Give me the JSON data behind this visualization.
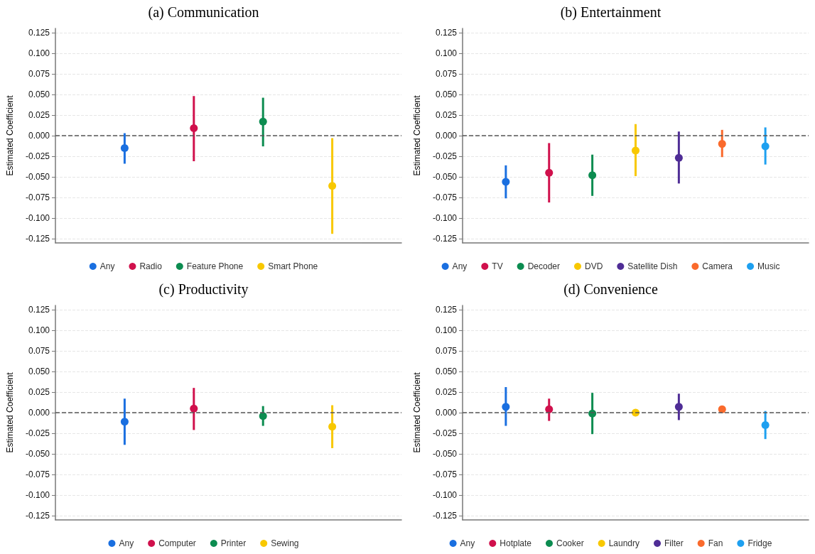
{
  "chart_data": [
    {
      "type": "scatter",
      "title": "(a) Communication",
      "ylabel": "Estimated Coefficient",
      "categories": [
        null,
        null,
        null,
        null
      ],
      "ylim": [
        -0.13,
        0.13
      ],
      "yticks": [
        {
          "value": -0.125,
          "label": "-0.125"
        },
        {
          "value": -0.1,
          "label": "-0.100"
        },
        {
          "value": -0.075,
          "label": "-0.075"
        },
        {
          "value": -0.05,
          "label": "-0.050"
        },
        {
          "value": -0.025,
          "label": "-0.025"
        },
        {
          "value": 0,
          "label": "0.000"
        },
        {
          "value": 0.025,
          "label": "0.025"
        },
        {
          "value": 0.05,
          "label": "0.050"
        },
        {
          "value": 0.075,
          "label": "0.075"
        },
        {
          "value": 0.1,
          "label": "0.100"
        },
        {
          "value": 0.125,
          "label": "0.125"
        }
      ],
      "grid": "y",
      "legend": "bottom",
      "marker": "circle",
      "tick_labels": "y",
      "ref_lines": [
        {
          "axis": "y",
          "value": 0,
          "color": "#555555",
          "line_style": "dashed"
        }
      ],
      "series": [
        {
          "name": "Any",
          "color": "#1a6fe0",
          "values": [
            -0.015,
            null,
            null,
            null
          ],
          "errors": [
            [
              -0.034,
              0.003
            ],
            null,
            null,
            null
          ]
        },
        {
          "name": "Radio",
          "color": "#d0104c",
          "values": [
            null,
            0.009,
            null,
            null
          ],
          "errors": [
            null,
            [
              -0.031,
              0.048
            ],
            null,
            null
          ]
        },
        {
          "name": "Feature Phone",
          "color": "#0c8c50",
          "values": [
            null,
            null,
            0.017,
            null
          ],
          "errors": [
            null,
            null,
            [
              -0.013,
              0.046
            ],
            null
          ]
        },
        {
          "name": "Smart Phone",
          "color": "#f8c800",
          "values": [
            null,
            null,
            null,
            -0.061
          ],
          "errors": [
            null,
            null,
            null,
            [
              -0.119,
              -0.003
            ]
          ]
        }
      ]
    },
    {
      "type": "scatter",
      "title": "(b) Entertainment",
      "ylabel": "Estimated Coefficient",
      "categories": [
        null,
        null,
        null,
        null,
        null,
        null,
        null
      ],
      "ylim": [
        -0.13,
        0.13
      ],
      "yticks": [
        {
          "value": -0.125,
          "label": "-0.125"
        },
        {
          "value": -0.1,
          "label": "-0.100"
        },
        {
          "value": -0.075,
          "label": "-0.075"
        },
        {
          "value": -0.05,
          "label": "-0.050"
        },
        {
          "value": -0.025,
          "label": "-0.025"
        },
        {
          "value": 0,
          "label": "0.000"
        },
        {
          "value": 0.025,
          "label": "0.025"
        },
        {
          "value": 0.05,
          "label": "0.050"
        },
        {
          "value": 0.075,
          "label": "0.075"
        },
        {
          "value": 0.1,
          "label": "0.100"
        },
        {
          "value": 0.125,
          "label": "0.125"
        }
      ],
      "grid": "y",
      "legend": "bottom",
      "marker": "circle",
      "tick_labels": "y",
      "ref_lines": [
        {
          "axis": "y",
          "value": 0,
          "color": "#555555",
          "line_style": "dashed"
        }
      ],
      "series": [
        {
          "name": "Any",
          "color": "#1a6fe0",
          "values": [
            -0.056,
            null,
            null,
            null,
            null,
            null,
            null
          ],
          "errors": [
            [
              -0.076,
              -0.036
            ],
            null,
            null,
            null,
            null,
            null,
            null
          ]
        },
        {
          "name": "TV",
          "color": "#d0104c",
          "values": [
            null,
            -0.045,
            null,
            null,
            null,
            null,
            null
          ],
          "errors": [
            null,
            [
              -0.081,
              -0.009
            ],
            null,
            null,
            null,
            null,
            null
          ]
        },
        {
          "name": "Decoder",
          "color": "#0c8c50",
          "values": [
            null,
            null,
            -0.048,
            null,
            null,
            null,
            null
          ],
          "errors": [
            null,
            null,
            [
              -0.073,
              -0.023
            ],
            null,
            null,
            null,
            null
          ]
        },
        {
          "name": "DVD",
          "color": "#f8c800",
          "values": [
            null,
            null,
            null,
            -0.018,
            null,
            null,
            null
          ],
          "errors": [
            null,
            null,
            null,
            [
              -0.049,
              0.014
            ],
            null,
            null,
            null
          ]
        },
        {
          "name": "Satellite Dish",
          "color": "#4f2d96",
          "values": [
            null,
            null,
            null,
            null,
            -0.027,
            null,
            null
          ],
          "errors": [
            null,
            null,
            null,
            null,
            [
              -0.058,
              0.005
            ],
            null,
            null
          ]
        },
        {
          "name": "Camera",
          "color": "#fa6a2c",
          "values": [
            null,
            null,
            null,
            null,
            null,
            -0.01,
            null
          ],
          "errors": [
            null,
            null,
            null,
            null,
            null,
            [
              -0.026,
              0.007
            ],
            null
          ]
        },
        {
          "name": "Music",
          "color": "#1ea0f0",
          "values": [
            null,
            null,
            null,
            null,
            null,
            null,
            -0.013
          ],
          "errors": [
            null,
            null,
            null,
            null,
            null,
            null,
            [
              -0.035,
              0.01
            ]
          ]
        }
      ]
    },
    {
      "type": "scatter",
      "title": "(c) Productivity",
      "ylabel": "Estimated Coefficient",
      "categories": [
        null,
        null,
        null,
        null
      ],
      "ylim": [
        -0.13,
        0.13
      ],
      "yticks": [
        {
          "value": -0.125,
          "label": "-0.125"
        },
        {
          "value": -0.1,
          "label": "-0.100"
        },
        {
          "value": -0.075,
          "label": "-0.075"
        },
        {
          "value": -0.05,
          "label": "-0.050"
        },
        {
          "value": -0.025,
          "label": "-0.025"
        },
        {
          "value": 0,
          "label": "0.000"
        },
        {
          "value": 0.025,
          "label": "0.025"
        },
        {
          "value": 0.05,
          "label": "0.050"
        },
        {
          "value": 0.075,
          "label": "0.075"
        },
        {
          "value": 0.1,
          "label": "0.100"
        },
        {
          "value": 0.125,
          "label": "0.125"
        }
      ],
      "grid": "y",
      "legend": "bottom",
      "marker": "circle",
      "tick_labels": "y",
      "ref_lines": [
        {
          "axis": "y",
          "value": 0,
          "color": "#555555",
          "line_style": "dashed"
        }
      ],
      "series": [
        {
          "name": "Any",
          "color": "#1a6fe0",
          "values": [
            -0.011,
            null,
            null,
            null
          ],
          "errors": [
            [
              -0.039,
              0.017
            ],
            null,
            null,
            null
          ]
        },
        {
          "name": "Computer",
          "color": "#d0104c",
          "values": [
            null,
            0.005,
            null,
            null
          ],
          "errors": [
            null,
            [
              -0.021,
              0.03
            ],
            null,
            null
          ]
        },
        {
          "name": "Printer",
          "color": "#0c8c50",
          "values": [
            null,
            null,
            -0.004,
            null
          ],
          "errors": [
            null,
            null,
            [
              -0.016,
              0.008
            ],
            null
          ]
        },
        {
          "name": "Sewing",
          "color": "#f8c800",
          "values": [
            null,
            null,
            null,
            -0.017
          ],
          "errors": [
            null,
            null,
            null,
            [
              -0.043,
              0.009
            ]
          ]
        }
      ]
    },
    {
      "type": "scatter",
      "title": "(d) Convenience",
      "ylabel": "Estimated Coefficient",
      "categories": [
        null,
        null,
        null,
        null,
        null,
        null,
        null
      ],
      "ylim": [
        -0.13,
        0.13
      ],
      "yticks": [
        {
          "value": -0.125,
          "label": "-0.125"
        },
        {
          "value": -0.1,
          "label": "-0.100"
        },
        {
          "value": -0.075,
          "label": "-0.075"
        },
        {
          "value": -0.05,
          "label": "-0.050"
        },
        {
          "value": -0.025,
          "label": "-0.025"
        },
        {
          "value": 0,
          "label": "0.000"
        },
        {
          "value": 0.025,
          "label": "0.025"
        },
        {
          "value": 0.05,
          "label": "0.050"
        },
        {
          "value": 0.075,
          "label": "0.075"
        },
        {
          "value": 0.1,
          "label": "0.100"
        },
        {
          "value": 0.125,
          "label": "0.125"
        }
      ],
      "grid": "y",
      "legend": "bottom",
      "marker": "circle",
      "tick_labels": "y",
      "ref_lines": [
        {
          "axis": "y",
          "value": 0,
          "color": "#555555",
          "line_style": "dashed"
        }
      ],
      "series": [
        {
          "name": "Any",
          "color": "#1a6fe0",
          "values": [
            0.007,
            null,
            null,
            null,
            null,
            null,
            null
          ],
          "errors": [
            [
              -0.016,
              0.031
            ],
            null,
            null,
            null,
            null,
            null,
            null
          ]
        },
        {
          "name": "Hotplate",
          "color": "#d0104c",
          "values": [
            null,
            0.004,
            null,
            null,
            null,
            null,
            null
          ],
          "errors": [
            null,
            [
              -0.01,
              0.017
            ],
            null,
            null,
            null,
            null,
            null
          ]
        },
        {
          "name": "Cooker",
          "color": "#0c8c50",
          "values": [
            null,
            null,
            -0.001,
            null,
            null,
            null,
            null
          ],
          "errors": [
            null,
            null,
            [
              -0.026,
              0.024
            ],
            null,
            null,
            null,
            null
          ]
        },
        {
          "name": "Laundry",
          "color": "#f8c800",
          "values": [
            null,
            null,
            null,
            0.0,
            null,
            null,
            null
          ],
          "errors": [
            null,
            null,
            null,
            null,
            null,
            null,
            null
          ]
        },
        {
          "name": "Filter",
          "color": "#4f2d96",
          "values": [
            null,
            null,
            null,
            null,
            0.007,
            null,
            null
          ],
          "errors": [
            null,
            null,
            null,
            null,
            [
              -0.009,
              0.023
            ],
            null,
            null
          ]
        },
        {
          "name": "Fan",
          "color": "#fa6a2c",
          "values": [
            null,
            null,
            null,
            null,
            null,
            0.004,
            null
          ],
          "errors": [
            null,
            null,
            null,
            null,
            null,
            [
              0.001,
              0.008
            ],
            null
          ]
        },
        {
          "name": "Fridge",
          "color": "#1ea0f0",
          "values": [
            null,
            null,
            null,
            null,
            null,
            null,
            -0.015
          ],
          "errors": [
            null,
            null,
            null,
            null,
            null,
            null,
            [
              -0.032,
              0.002
            ]
          ]
        }
      ]
    }
  ]
}
